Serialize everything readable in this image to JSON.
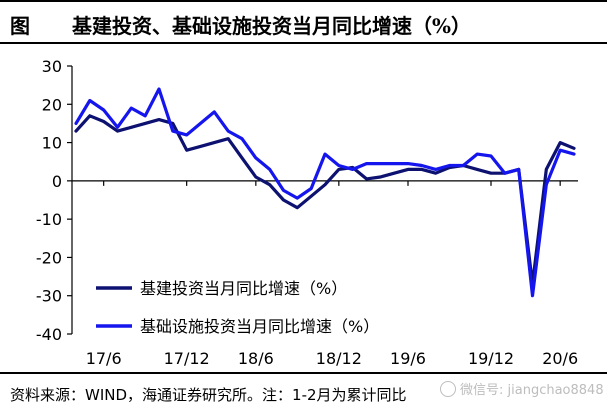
{
  "figure": {
    "label": "图",
    "title": "基建投资、基础设施投资当月同比增速（%）"
  },
  "chart_data": {
    "type": "line",
    "title": "",
    "xlabel": "",
    "ylabel": "",
    "ylim": [
      -40,
      30
    ],
    "yticks": [
      30,
      20,
      10,
      0,
      -10,
      -20,
      -30,
      -40
    ],
    "x_tick_labels": [
      "17/6",
      "17/12",
      "18/6",
      "18/12",
      "19/6",
      "19/12",
      "20/6"
    ],
    "x": [
      "17/4",
      "17/5",
      "17/6",
      "17/7",
      "17/8",
      "17/9",
      "17/10",
      "17/11",
      "17/12",
      "18/1",
      "18/3",
      "18/4",
      "18/5",
      "18/6",
      "18/7",
      "18/8",
      "18/9",
      "18/10",
      "18/11",
      "18/12",
      "19/1",
      "19/3",
      "19/4",
      "19/5",
      "19/6",
      "19/7",
      "19/8",
      "19/9",
      "19/10",
      "19/11",
      "19/12",
      "20/1",
      "20/3",
      "20/4",
      "20/5",
      "20/6",
      "20/7"
    ],
    "legend_position": "bottom-left",
    "grid": false,
    "series": [
      {
        "name": "基建投资当月同比增速（%）",
        "color": "#0d1170",
        "values": [
          13,
          17,
          15.5,
          13,
          14,
          15,
          16,
          15,
          8,
          9,
          10,
          11,
          6,
          1,
          -1,
          -5,
          -7,
          -4,
          -1,
          3,
          3.5,
          0.5,
          1,
          2,
          3,
          3,
          2,
          3.5,
          4,
          3,
          2,
          2,
          3,
          -27,
          3,
          10,
          8.5
        ]
      },
      {
        "name": "基础设施投资当月同比增速（%）",
        "color": "#1515ee",
        "values": [
          15,
          21,
          18.5,
          14,
          19,
          17,
          24,
          13,
          12,
          15,
          18,
          13,
          11,
          6,
          3,
          -2.5,
          -4.5,
          -2,
          7,
          4,
          3,
          4.5,
          4.5,
          4.5,
          4.5,
          4,
          3,
          4,
          4,
          7,
          6.5,
          2,
          3,
          -30,
          -1,
          8,
          7
        ]
      }
    ]
  },
  "footer": {
    "source": "资料来源：WIND，海通证券研究所。注：1-2月为累计同比",
    "watermark": "微信号: jiangchao8848"
  }
}
